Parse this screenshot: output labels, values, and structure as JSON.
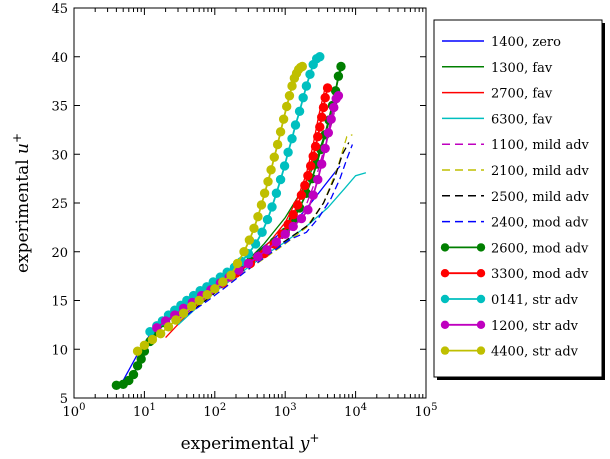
{
  "chart_data": {
    "type": "line",
    "xlabel": "experimental",
    "xlabel_var": "y",
    "ylabel": "experimental",
    "ylabel_var": "u",
    "xscale": "log",
    "xlim": [
      1,
      100000
    ],
    "ylim": [
      5,
      45
    ],
    "x_ticks": [
      {
        "value": 1,
        "base": "10",
        "exp": "0"
      },
      {
        "value": 10,
        "base": "10",
        "exp": "1"
      },
      {
        "value": 100,
        "base": "10",
        "exp": "2"
      },
      {
        "value": 1000,
        "base": "10",
        "exp": "3"
      },
      {
        "value": 10000,
        "base": "10",
        "exp": "4"
      },
      {
        "value": 100000,
        "base": "10",
        "exp": "5"
      }
    ],
    "y_ticks": [
      5,
      10,
      15,
      20,
      25,
      30,
      35,
      40,
      45
    ],
    "grid": false,
    "legend_position": "right",
    "series": [
      {
        "name": "1400, zero",
        "color": "#0000ff",
        "style": "solid",
        "marker": false,
        "x": [
          5,
          8,
          12,
          20,
          40,
          80,
          150,
          300,
          600,
          1000,
          1600,
          2500,
          4000,
          6000
        ],
        "y": [
          6.8,
          9.5,
          11.5,
          13.2,
          14.8,
          16.2,
          17.6,
          19.3,
          21.0,
          22.3,
          23.6,
          25.3,
          27.2,
          28.8
        ]
      },
      {
        "name": "1300, fav",
        "color": "#007f00",
        "style": "solid",
        "marker": false,
        "x": [
          30,
          60,
          120,
          250,
          500,
          1000,
          1800,
          2800,
          3800,
          4800,
          5800,
          6500
        ],
        "y": [
          13.8,
          15.6,
          17.0,
          18.6,
          20.8,
          23.5,
          26.5,
          29.5,
          32.5,
          35.5,
          38.0,
          39.0
        ]
      },
      {
        "name": "2700, fav",
        "color": "#ff0000",
        "style": "solid",
        "marker": false,
        "x": [
          20,
          40,
          80,
          150,
          300,
          600,
          1000,
          1500,
          2000,
          2500,
          3000,
          3600
        ],
        "y": [
          11.2,
          13.5,
          15.5,
          17.2,
          19.0,
          21.0,
          23.0,
          25.5,
          28.0,
          31.0,
          34.0,
          36.5
        ]
      },
      {
        "name": "6300, fav",
        "color": "#00bfbf",
        "style": "solid",
        "marker": false,
        "x": [
          30,
          60,
          120,
          250,
          500,
          1000,
          2000,
          4000,
          7000,
          10000,
          14000
        ],
        "y": [
          12.5,
          14.5,
          16.3,
          18.0,
          19.6,
          21.0,
          22.6,
          24.5,
          26.5,
          27.8,
          28.1
        ]
      },
      {
        "name": "1100, mild adv",
        "color": "#bf00bf",
        "style": "dashed",
        "marker": false,
        "x": [
          30,
          60,
          120,
          250,
          500,
          1000,
          1800,
          2600,
          3400,
          4500,
          5500
        ],
        "y": [
          13.0,
          14.8,
          16.5,
          18.2,
          19.8,
          21.6,
          24.0,
          27.0,
          30.0,
          33.0,
          35.5
        ]
      },
      {
        "name": "2100, mild adv",
        "color": "#bfbf00",
        "style": "dashed",
        "marker": false,
        "x": [
          30,
          60,
          120,
          250,
          500,
          1000,
          2000,
          3500,
          5500,
          7500,
          9000
        ],
        "y": [
          12.8,
          14.6,
          16.2,
          17.8,
          19.3,
          20.8,
          22.5,
          25.0,
          28.5,
          31.8,
          32.0
        ]
      },
      {
        "name": "2500, mild adv",
        "color": "#000000",
        "style": "dashed",
        "marker": false,
        "x": [
          40,
          80,
          150,
          300,
          600,
          1200,
          2200,
          3500,
          5000,
          6500,
          8000
        ],
        "y": [
          13.5,
          15.2,
          16.8,
          18.5,
          20.0,
          21.5,
          22.8,
          25.0,
          27.5,
          30.0,
          31.2
        ]
      },
      {
        "name": "2400, mod adv",
        "color": "#0000ff",
        "style": "dashed",
        "marker": false,
        "x": [
          40,
          80,
          150,
          300,
          600,
          1200,
          2000,
          3000,
          4500,
          6000,
          7500,
          9000
        ],
        "y": [
          13.5,
          15.0,
          16.5,
          18.2,
          19.8,
          21.3,
          22.0,
          23.5,
          25.5,
          27.5,
          29.5,
          31.0
        ]
      },
      {
        "name": "2600, mod adv",
        "color": "#007f00",
        "style": "solid",
        "marker": true,
        "x": [
          4,
          5,
          6,
          7,
          8,
          9,
          10,
          12,
          15,
          20,
          30,
          50,
          80,
          130,
          200,
          320,
          500,
          700,
          1000,
          1300,
          1600,
          2000,
          2400,
          2800,
          3200,
          3700,
          4200,
          4700,
          5200,
          5700,
          6200
        ],
        "y": [
          6.3,
          6.4,
          6.8,
          7.4,
          8.3,
          9.0,
          9.8,
          10.8,
          11.8,
          12.7,
          13.8,
          15.0,
          16.0,
          17.0,
          18.0,
          19.0,
          20.0,
          21.0,
          22.0,
          23.3,
          24.5,
          26.0,
          27.5,
          29.0,
          30.5,
          32.0,
          33.5,
          35.0,
          36.5,
          38.0,
          39.0
        ]
      },
      {
        "name": "3300, mod adv",
        "color": "#ff0000",
        "style": "solid",
        "marker": true,
        "x": [
          30,
          50,
          80,
          130,
          200,
          320,
          500,
          700,
          900,
          1100,
          1300,
          1500,
          1700,
          1900,
          2100,
          2300,
          2500,
          2700,
          2900,
          3100,
          3300,
          3500,
          3700,
          4000
        ],
        "y": [
          13.8,
          14.8,
          15.8,
          16.8,
          17.8,
          18.8,
          19.8,
          20.8,
          21.8,
          22.8,
          23.8,
          24.8,
          25.8,
          26.8,
          27.8,
          28.8,
          29.8,
          30.8,
          31.8,
          32.8,
          33.8,
          34.8,
          35.8,
          36.8
        ]
      },
      {
        "name": "0141, str adv",
        "color": "#00bfbf",
        "style": "solid",
        "marker": true,
        "x": [
          12,
          15,
          18,
          22,
          27,
          33,
          40,
          50,
          62,
          77,
          95,
          120,
          150,
          190,
          240,
          300,
          380,
          470,
          560,
          650,
          750,
          860,
          980,
          1100,
          1250,
          1400,
          1600,
          1800,
          2000,
          2250,
          2500,
          2800,
          3100
        ],
        "y": [
          11.8,
          12.4,
          12.9,
          13.5,
          14.0,
          14.5,
          15.0,
          15.5,
          16.0,
          16.4,
          16.9,
          17.4,
          17.9,
          18.4,
          19.0,
          19.8,
          20.8,
          22.0,
          23.3,
          24.6,
          26.0,
          27.4,
          28.8,
          30.2,
          31.6,
          33.0,
          34.4,
          35.8,
          37.0,
          38.2,
          39.2,
          39.8,
          40.0
        ]
      },
      {
        "name": "1200, str adv",
        "color": "#bf00bf",
        "style": "solid",
        "marker": true,
        "x": [
          15,
          20,
          27,
          36,
          48,
          65,
          88,
          120,
          160,
          220,
          300,
          410,
          550,
          750,
          1000,
          1300,
          1700,
          2100,
          2500,
          2900,
          3300,
          3700,
          4100,
          4500,
          4900,
          5300,
          5700
        ],
        "y": [
          12.2,
          12.9,
          13.5,
          14.2,
          14.8,
          15.5,
          16.1,
          16.8,
          17.4,
          18.1,
          18.8,
          19.5,
          20.2,
          21.0,
          21.8,
          22.6,
          23.4,
          24.3,
          25.8,
          27.4,
          29.0,
          30.6,
          32.2,
          33.6,
          34.8,
          35.7,
          36.0
        ]
      },
      {
        "name": "4400, str adv",
        "color": "#bfbf00",
        "style": "solid",
        "marker": true,
        "x": [
          8,
          10,
          13,
          17,
          22,
          28,
          36,
          47,
          60,
          78,
          100,
          130,
          170,
          210,
          260,
          310,
          360,
          410,
          460,
          510,
          570,
          630,
          700,
          780,
          860,
          950,
          1050,
          1150,
          1250,
          1350,
          1450,
          1550,
          1650,
          1750
        ],
        "y": [
          9.8,
          10.4,
          11.0,
          11.6,
          12.3,
          13.0,
          13.7,
          14.4,
          15.0,
          15.6,
          16.2,
          16.9,
          17.6,
          18.8,
          20.0,
          21.2,
          22.4,
          23.6,
          24.8,
          26.0,
          27.2,
          28.4,
          29.7,
          31.0,
          32.3,
          33.6,
          34.9,
          36.0,
          37.0,
          37.8,
          38.3,
          38.7,
          38.9,
          39.0
        ]
      }
    ]
  }
}
